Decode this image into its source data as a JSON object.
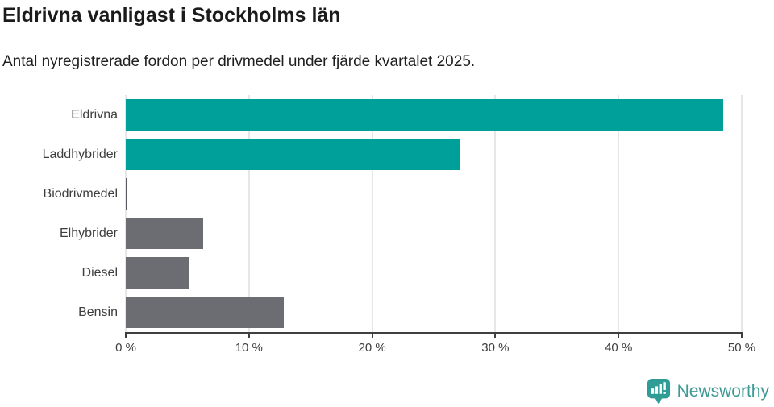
{
  "chart_data": {
    "type": "bar",
    "orientation": "horizontal",
    "title": "Eldrivna vanligast i Stockholms län",
    "subtitle": "Antal nyregistrerade fordon per drivmedel under fjärde kvartalet 2025.",
    "categories": [
      "Eldrivna",
      "Laddhybrider",
      "Biodrivmedel",
      "Elhybrider",
      "Diesel",
      "Bensin"
    ],
    "values": [
      48.5,
      27.1,
      0.1,
      6.3,
      5.2,
      12.8
    ],
    "unit": "%",
    "xlim": [
      0,
      50
    ],
    "xticks": [
      0,
      10,
      20,
      30,
      40,
      50
    ],
    "xtick_labels": [
      "0 %",
      "10 %",
      "20 %",
      "30 %",
      "40 %",
      "50 %"
    ],
    "bar_colors": [
      "#00A09A",
      "#00A09A",
      "#595A62",
      "#6C6C73",
      "#6C6C73",
      "#6C6C73"
    ],
    "grid": "vertical",
    "legend": "none"
  },
  "colors": {
    "accent_teal": "#00A09A",
    "bar_gray": "#6C6C73",
    "bar_dark_gray": "#595A62",
    "grid": "#E7E7E7",
    "axis": "#3F3F3F",
    "title_text": "#1B1B1B",
    "label_text": "#3D3D3D",
    "brand_teal": "#3D9A94"
  },
  "footer": {
    "brand": "Newsworthy"
  }
}
